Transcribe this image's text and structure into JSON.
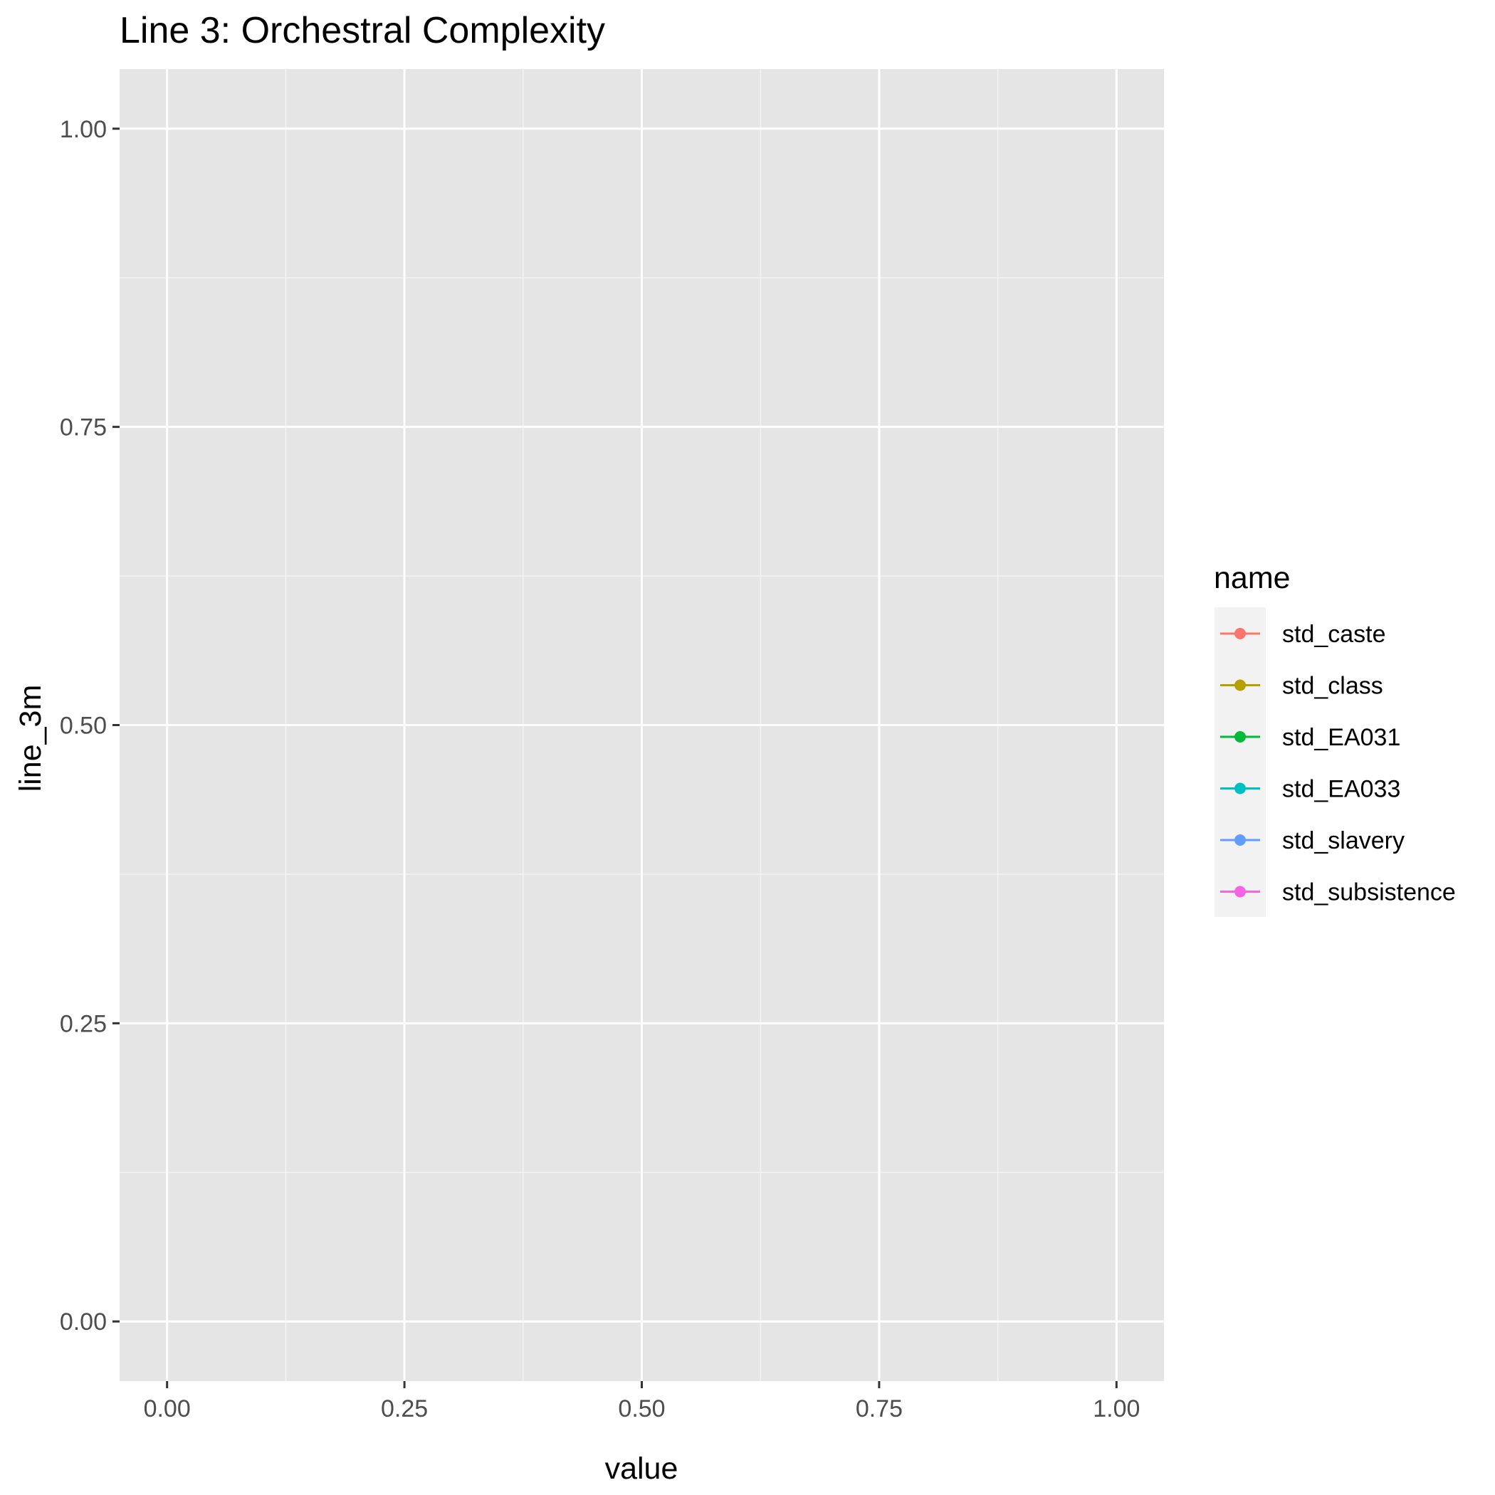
{
  "chart_data": {
    "type": "line",
    "title": "Line 3: Orchestral Complexity",
    "xlabel": "value",
    "ylabel": "line_3m",
    "xlim": [
      -0.05,
      1.05
    ],
    "ylim": [
      -0.05,
      1.05
    ],
    "x_ticks": [
      0.0,
      0.25,
      0.5,
      0.75,
      1.0
    ],
    "x_tick_labels": [
      "0.00",
      "0.25",
      "0.50",
      "0.75",
      "1.00"
    ],
    "y_ticks": [
      0.0,
      0.25,
      0.5,
      0.75,
      1.0
    ],
    "y_tick_labels": [
      "0.00",
      "0.25",
      "0.50",
      "0.75",
      "1.00"
    ],
    "grid": true,
    "legend": {
      "title": "name",
      "position": "right"
    },
    "series": [
      {
        "name": "std_caste",
        "color": "#F8766D",
        "x": [],
        "y": []
      },
      {
        "name": "std_class",
        "color": "#B79F00",
        "x": [],
        "y": []
      },
      {
        "name": "std_EA031",
        "color": "#00BA38",
        "x": [],
        "y": []
      },
      {
        "name": "std_EA033",
        "color": "#00BFC4",
        "x": [],
        "y": []
      },
      {
        "name": "std_slavery",
        "color": "#619CFF",
        "x": [],
        "y": []
      },
      {
        "name": "std_subsistence",
        "color": "#F564E3",
        "x": [],
        "y": []
      }
    ],
    "colors": {
      "panel_background": "#E5E5E5",
      "grid_major": "#FFFFFF",
      "grid_minor": "#F2F2F2",
      "tick_label": "#4D4D4D",
      "tick_mark": "#333333",
      "legend_key_background": "#F2F2F2"
    }
  }
}
